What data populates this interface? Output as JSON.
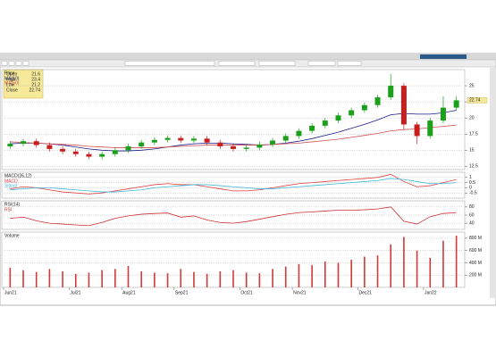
{
  "chart_data": [
    {
      "type": "candlestick",
      "title": "Price",
      "info_labels": [
        "Open",
        "High",
        "Low",
        "Close"
      ],
      "open": [
        15.6,
        16.0,
        16.4,
        15.8,
        15.2,
        14.8,
        14.4,
        14.0,
        14.4,
        15.0,
        15.6,
        16.2,
        16.6,
        16.9,
        16.5,
        16.8,
        16.2,
        15.6,
        15.2,
        15.4,
        15.9,
        16.5,
        17.2,
        18.0,
        18.8,
        19.6,
        20.4,
        21.2,
        22.0,
        23.2,
        25.0,
        19.0,
        17.2,
        19.6,
        21.6
      ],
      "high": [
        16.4,
        16.8,
        16.8,
        16.2,
        15.6,
        15.2,
        14.8,
        14.8,
        15.4,
        16.0,
        16.6,
        17.0,
        17.3,
        17.3,
        17.2,
        17.2,
        16.6,
        16.0,
        15.8,
        16.3,
        16.9,
        17.6,
        18.4,
        19.2,
        20.0,
        20.8,
        21.6,
        22.4,
        23.6,
        26.8,
        25.4,
        19.4,
        20.0,
        23.4,
        23.4
      ],
      "low": [
        15.2,
        15.6,
        15.4,
        14.8,
        14.4,
        14.0,
        13.6,
        13.6,
        14.0,
        14.6,
        15.2,
        15.8,
        16.2,
        16.1,
        16.1,
        15.8,
        15.2,
        14.8,
        14.8,
        15.0,
        15.5,
        16.1,
        16.8,
        17.6,
        18.4,
        19.2,
        20.0,
        20.8,
        21.6,
        22.8,
        18.2,
        16.0,
        16.8,
        19.2,
        21.2
      ],
      "close": [
        16.0,
        16.4,
        15.8,
        15.2,
        14.8,
        14.4,
        14.0,
        14.4,
        15.0,
        15.6,
        16.2,
        16.6,
        16.9,
        16.5,
        16.8,
        16.2,
        15.6,
        15.2,
        15.4,
        15.9,
        16.5,
        17.2,
        18.0,
        18.8,
        19.6,
        20.4,
        21.2,
        22.0,
        23.2,
        25.0,
        19.0,
        17.2,
        19.6,
        21.6,
        22.74
      ],
      "up_color": "#1aa01a",
      "down_color": "#c81e1e",
      "series": [
        {
          "name": "MA(10)",
          "color": "#1a1a8c",
          "values": [
            16.0,
            16.1,
            16.1,
            16.0,
            15.8,
            15.5,
            15.2,
            15.0,
            14.9,
            14.9,
            15.0,
            15.2,
            15.5,
            15.8,
            16.0,
            16.1,
            16.1,
            16.0,
            15.9,
            15.8,
            15.9,
            16.1,
            16.4,
            16.8,
            17.3,
            17.8,
            18.4,
            19.0,
            19.7,
            20.5,
            20.7,
            20.6,
            20.6,
            20.8,
            21.2
          ]
        },
        {
          "name": "MA(50)",
          "color": "#d05050",
          "values": [
            16.3,
            16.2,
            16.1,
            16.0,
            15.9,
            15.8,
            15.6,
            15.5,
            15.4,
            15.4,
            15.4,
            15.4,
            15.5,
            15.6,
            15.7,
            15.8,
            15.8,
            15.8,
            15.8,
            15.8,
            15.9,
            16.0,
            16.1,
            16.3,
            16.5,
            16.7,
            17.0,
            17.3,
            17.6,
            18.0,
            18.2,
            18.3,
            18.5,
            18.7,
            18.9
          ]
        }
      ],
      "ylim": [
        12,
        27.5
      ],
      "yticks": [
        12.5,
        15,
        17.5,
        20,
        22.5,
        25
      ],
      "grid": true
    },
    {
      "type": "line",
      "title": "MACD(26,12)",
      "series": [
        {
          "name": "MACD",
          "color": "#e04040",
          "values": [
            -0.1,
            0.1,
            0.0,
            -0.2,
            -0.4,
            -0.5,
            -0.6,
            -0.5,
            -0.3,
            -0.1,
            0.1,
            0.3,
            0.4,
            0.3,
            0.3,
            0.1,
            -0.1,
            -0.3,
            -0.3,
            -0.2,
            0.0,
            0.2,
            0.4,
            0.5,
            0.6,
            0.7,
            0.8,
            0.9,
            1.0,
            1.3,
            0.6,
            0.1,
            0.2,
            0.5,
            0.8
          ]
        },
        {
          "name": "Signal",
          "color": "#40b8d8",
          "values": [
            -0.2,
            -0.1,
            0.0,
            0.0,
            -0.1,
            -0.2,
            -0.3,
            -0.4,
            -0.4,
            -0.3,
            -0.2,
            0.0,
            0.1,
            0.2,
            0.3,
            0.3,
            0.2,
            0.1,
            0.0,
            -0.1,
            -0.1,
            0.0,
            0.1,
            0.2,
            0.3,
            0.4,
            0.5,
            0.6,
            0.7,
            0.9,
            0.8,
            0.6,
            0.4,
            0.4,
            0.5
          ]
        }
      ],
      "ylim": [
        -1,
        1.5
      ],
      "yticks": [
        -0.5,
        0,
        0.5,
        1
      ],
      "grid": true
    },
    {
      "type": "line",
      "title": "RSI(14)",
      "series": [
        {
          "name": "RSI",
          "color": "#d03030",
          "values": [
            52,
            55,
            46,
            40,
            38,
            36,
            34,
            42,
            52,
            58,
            62,
            64,
            65,
            55,
            58,
            48,
            42,
            40,
            44,
            50,
            56,
            62,
            66,
            68,
            70,
            72,
            72,
            73,
            75,
            80,
            45,
            38,
            56,
            64,
            66
          ]
        }
      ],
      "ylim": [
        25,
        95
      ],
      "yticks": [
        40,
        60,
        80
      ],
      "grid": true
    },
    {
      "type": "bar",
      "title": "Volume",
      "categories": [
        "Jun21",
        null,
        null,
        null,
        null,
        "Jul21",
        null,
        null,
        null,
        "Aug21",
        null,
        null,
        null,
        "Sep21",
        null,
        null,
        null,
        null,
        "Oct21",
        null,
        null,
        null,
        "Nov21",
        null,
        null,
        null,
        null,
        "Dec21",
        null,
        null,
        null,
        null,
        "Jan22",
        null,
        null
      ],
      "values": [
        320,
        280,
        250,
        300,
        260,
        220,
        240,
        280,
        300,
        350,
        260,
        240,
        230,
        300,
        250,
        220,
        260,
        280,
        240,
        230,
        300,
        340,
        380,
        360,
        420,
        400,
        450,
        500,
        520,
        700,
        820,
        600,
        480,
        760,
        840
      ],
      "color": "#d03a3a",
      "ylim": [
        0,
        900
      ],
      "yticks": [
        {
          "value": 200,
          "label": "200 M"
        },
        {
          "value": 400,
          "label": "400 M"
        },
        {
          "value": 600,
          "label": "600 M"
        },
        {
          "value": 800,
          "label": "800 M"
        }
      ],
      "grid": true
    }
  ]
}
